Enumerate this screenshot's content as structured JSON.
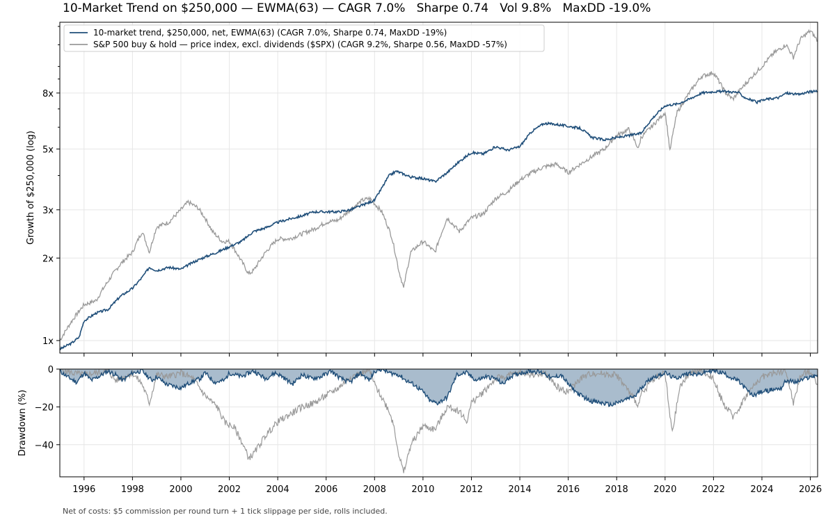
{
  "title": "10-Market Trend on $250,000 — EWMA(63) — CAGR 7.0%   Sharpe 0.74   Vol 9.8%   MaxDD -19.0%",
  "footnote": "Net of costs: $5 commission per round turn + 1 tick slippage per side, rolls included.",
  "colors": {
    "strategy": "#1f4e79",
    "benchmark": "#999999",
    "drawdown_fill": "#a9bccd",
    "grid": "#e6e6e6"
  },
  "chart_data": [
    {
      "type": "line",
      "ylabel": "Growth of $250,000  (log)",
      "yscale": "log",
      "ylim": [
        0.9,
        14.5
      ],
      "xlim": [
        1995.0,
        2026.3
      ],
      "yticks": [
        {
          "value": 1,
          "label": "1x"
        },
        {
          "value": 2,
          "label": "2x"
        },
        {
          "value": 3,
          "label": "3x"
        },
        {
          "value": 5,
          "label": "5x"
        },
        {
          "value": 8,
          "label": "8x"
        }
      ],
      "grid": true,
      "legend": "top-left",
      "series": [
        {
          "name": "10-market trend, $250,000, net, EWMA(63)  (CAGR 7.0%, Sharpe 0.74, MaxDD -19%)",
          "x": [
            1995.0,
            1995.5,
            1995.8,
            1996.0,
            1996.5,
            1997.0,
            1997.5,
            1998.0,
            1998.4,
            1998.7,
            1999.0,
            1999.5,
            2000.0,
            2000.5,
            2001.0,
            2001.5,
            2002.0,
            2002.5,
            2003.0,
            2003.5,
            2004.0,
            2004.5,
            2005.0,
            2005.5,
            2006.0,
            2006.5,
            2007.0,
            2007.5,
            2008.0,
            2008.3,
            2008.6,
            2008.9,
            2009.2,
            2009.5,
            2010.0,
            2010.5,
            2011.0,
            2011.5,
            2012.0,
            2012.5,
            2013.0,
            2013.5,
            2014.0,
            2014.5,
            2015.0,
            2015.5,
            2016.0,
            2016.5,
            2017.0,
            2017.5,
            2018.0,
            2018.5,
            2019.0,
            2019.5,
            2020.0,
            2020.5,
            2021.0,
            2021.5,
            2022.0,
            2022.5,
            2023.0,
            2023.3,
            2023.8,
            2024.2,
            2024.7,
            2025.0,
            2025.5,
            2026.0,
            2026.3
          ],
          "values": [
            0.93,
            0.98,
            1.03,
            1.18,
            1.26,
            1.3,
            1.45,
            1.55,
            1.7,
            1.85,
            1.8,
            1.85,
            1.82,
            1.93,
            2.02,
            2.1,
            2.2,
            2.3,
            2.5,
            2.58,
            2.7,
            2.78,
            2.85,
            2.95,
            2.95,
            2.95,
            3.0,
            3.12,
            3.25,
            3.6,
            4.0,
            4.15,
            4.05,
            3.95,
            3.9,
            3.8,
            4.1,
            4.5,
            4.85,
            4.8,
            5.1,
            4.95,
            5.1,
            5.8,
            6.2,
            6.15,
            6.05,
            5.95,
            5.5,
            5.4,
            5.5,
            5.6,
            5.7,
            6.5,
            7.2,
            7.3,
            7.6,
            8.0,
            8.1,
            8.1,
            8.05,
            7.7,
            7.4,
            7.6,
            7.7,
            8.0,
            7.9,
            8.1,
            8.1
          ]
        },
        {
          "name": "S&P 500 buy & hold — price index, excl. dividends ($SPX)  (CAGR 9.2%, Sharpe 0.56, MaxDD -57%)",
          "x": [
            1995.0,
            1995.5,
            1996.0,
            1996.5,
            1997.0,
            1997.5,
            1998.0,
            1998.4,
            1998.7,
            1999.0,
            1999.5,
            2000.0,
            2000.3,
            2000.7,
            2001.0,
            2001.3,
            2001.7,
            2002.0,
            2002.5,
            2002.8,
            2003.0,
            2003.5,
            2004.0,
            2004.5,
            2005.0,
            2005.5,
            2006.0,
            2006.5,
            2007.0,
            2007.5,
            2007.8,
            2008.3,
            2008.7,
            2009.0,
            2009.2,
            2009.5,
            2010.0,
            2010.5,
            2011.0,
            2011.5,
            2012.0,
            2012.5,
            2013.0,
            2013.5,
            2014.0,
            2014.5,
            2015.0,
            2015.5,
            2016.0,
            2016.5,
            2017.0,
            2017.5,
            2018.0,
            2018.5,
            2018.9,
            2019.0,
            2019.5,
            2020.0,
            2020.2,
            2020.5,
            2021.0,
            2021.5,
            2022.0,
            2022.5,
            2022.8,
            2023.0,
            2023.5,
            2024.0,
            2024.5,
            2025.0,
            2025.3,
            2025.6,
            2026.0,
            2026.3
          ],
          "values": [
            1.0,
            1.18,
            1.35,
            1.4,
            1.65,
            1.9,
            2.1,
            2.5,
            2.1,
            2.6,
            2.7,
            3.0,
            3.2,
            3.05,
            2.8,
            2.5,
            2.3,
            2.3,
            1.95,
            1.75,
            1.8,
            2.1,
            2.35,
            2.35,
            2.45,
            2.55,
            2.7,
            2.75,
            3.0,
            3.25,
            3.3,
            2.95,
            2.4,
            1.8,
            1.55,
            2.1,
            2.3,
            2.1,
            2.8,
            2.5,
            2.8,
            2.9,
            3.3,
            3.5,
            3.85,
            4.1,
            4.3,
            4.4,
            4.1,
            4.4,
            4.7,
            5.0,
            5.6,
            5.9,
            5.0,
            5.5,
            6.1,
            6.8,
            4.9,
            6.8,
            8.0,
            9.2,
            9.5,
            8.0,
            7.6,
            8.0,
            9.0,
            10.0,
            11.2,
            12.0,
            10.8,
            12.6,
            13.5,
            12.4
          ]
        }
      ]
    },
    {
      "type": "area",
      "ylabel": "Drawdown (%)",
      "ylim": [
        -57,
        0
      ],
      "xlim": [
        1995.0,
        2026.3
      ],
      "yticks": [
        {
          "value": 0,
          "label": "0"
        },
        {
          "value": -20,
          "label": "−20"
        },
        {
          "value": -40,
          "label": "−40"
        }
      ],
      "xticks": [
        "1996",
        "1998",
        "2000",
        "2002",
        "2004",
        "2006",
        "2008",
        "2010",
        "2012",
        "2014",
        "2016",
        "2018",
        "2020",
        "2022",
        "2024",
        "2026"
      ],
      "grid": true,
      "series": [
        {
          "name": "10-market trend drawdown",
          "x": [
            1995.0,
            1995.3,
            1995.7,
            1996.0,
            1996.3,
            1996.6,
            1997.0,
            1997.3,
            1997.6,
            1998.0,
            1998.4,
            1998.8,
            1999.0,
            1999.4,
            1999.7,
            2000.0,
            2000.4,
            2000.8,
            2001.0,
            2001.4,
            2001.8,
            2002.0,
            2002.5,
            2003.0,
            2003.5,
            2003.9,
            2004.2,
            2004.6,
            2005.0,
            2005.4,
            2005.8,
            2006.2,
            2006.6,
            2007.0,
            2007.4,
            2007.8,
            2008.0,
            2008.3,
            2008.6,
            2009.0,
            2009.3,
            2009.6,
            2010.0,
            2010.3,
            2010.6,
            2011.0,
            2011.4,
            2011.8,
            2012.2,
            2012.6,
            2013.0,
            2013.3,
            2013.6,
            2014.0,
            2014.5,
            2015.0,
            2015.3,
            2015.7,
            2016.0,
            2016.4,
            2016.8,
            2017.0,
            2017.4,
            2017.8,
            2018.0,
            2018.4,
            2018.8,
            2019.0,
            2019.4,
            2019.8,
            2020.0,
            2020.4,
            2020.8,
            2021.0,
            2021.4,
            2021.8,
            2022.0,
            2022.4,
            2022.8,
            2023.0,
            2023.3,
            2023.6,
            2024.0,
            2024.4,
            2024.8,
            2025.0,
            2025.4,
            2025.8,
            2026.3
          ],
          "values": [
            -1,
            -4,
            -7,
            -2,
            -6,
            -4,
            -1,
            -3,
            -6,
            -2,
            -1,
            -6,
            -4,
            -8,
            -9,
            -10,
            -7,
            -5,
            -2,
            -7,
            -6,
            -2,
            -4,
            -1,
            -5,
            -2,
            -4,
            -8,
            -3,
            -5,
            -4,
            -1,
            -5,
            -7,
            -2,
            -6,
            -1,
            0,
            -2,
            -3,
            -6,
            -8,
            -12,
            -17,
            -18,
            -15,
            -3,
            -2,
            -6,
            -4,
            -5,
            -8,
            -4,
            -2,
            -1,
            -2,
            -5,
            -3,
            -8,
            -13,
            -16,
            -17,
            -18,
            -19,
            -18,
            -16,
            -14,
            -10,
            -5,
            -3,
            -2,
            -5,
            -3,
            -2,
            -3,
            -1,
            -1,
            -2,
            -5,
            -6,
            -10,
            -14,
            -12,
            -11,
            -10,
            -6,
            -7,
            -5,
            -3
          ]
        },
        {
          "name": "S&P 500 drawdown",
          "x": [
            1995.0,
            1995.5,
            1996.0,
            1996.5,
            1997.0,
            1997.3,
            1997.7,
            1998.0,
            1998.4,
            1998.7,
            1999.0,
            1999.5,
            2000.0,
            2000.5,
            2001.0,
            2001.5,
            2001.8,
            2002.2,
            2002.5,
            2002.8,
            2003.0,
            2003.5,
            2004.0,
            2004.5,
            2005.0,
            2005.5,
            2006.0,
            2006.5,
            2007.0,
            2007.5,
            2007.8,
            2008.0,
            2008.3,
            2008.6,
            2008.8,
            2009.0,
            2009.2,
            2009.5,
            2010.0,
            2010.5,
            2011.0,
            2011.5,
            2011.8,
            2012.0,
            2012.5,
            2013.0,
            2014.0,
            2014.8,
            2015.0,
            2015.6,
            2016.0,
            2016.5,
            2017.0,
            2018.0,
            2018.4,
            2018.9,
            2019.0,
            2019.5,
            2020.0,
            2020.2,
            2020.3,
            2020.6,
            2021.0,
            2021.5,
            2022.0,
            2022.3,
            2022.5,
            2022.8,
            2023.0,
            2023.3,
            2023.6,
            2024.0,
            2024.5,
            2025.0,
            2025.3,
            2025.6,
            2026.0,
            2026.3
          ],
          "values": [
            0,
            -2,
            -3,
            -2,
            -1,
            -6,
            -4,
            -2,
            -8,
            -18,
            -3,
            -4,
            -2,
            -5,
            -14,
            -20,
            -28,
            -31,
            -38,
            -47,
            -45,
            -35,
            -28,
            -24,
            -20,
            -18,
            -14,
            -10,
            -4,
            -2,
            -1,
            -8,
            -15,
            -22,
            -30,
            -45,
            -55,
            -40,
            -30,
            -32,
            -20,
            -22,
            -28,
            -18,
            -12,
            -5,
            -2,
            -3,
            -2,
            -10,
            -12,
            -5,
            -2,
            -3,
            -10,
            -19,
            -14,
            -5,
            -2,
            -25,
            -34,
            -10,
            -2,
            -1,
            -5,
            -15,
            -20,
            -25,
            -22,
            -15,
            -10,
            -4,
            -2,
            -1,
            -18,
            -3,
            -1,
            -8
          ]
        }
      ]
    }
  ]
}
